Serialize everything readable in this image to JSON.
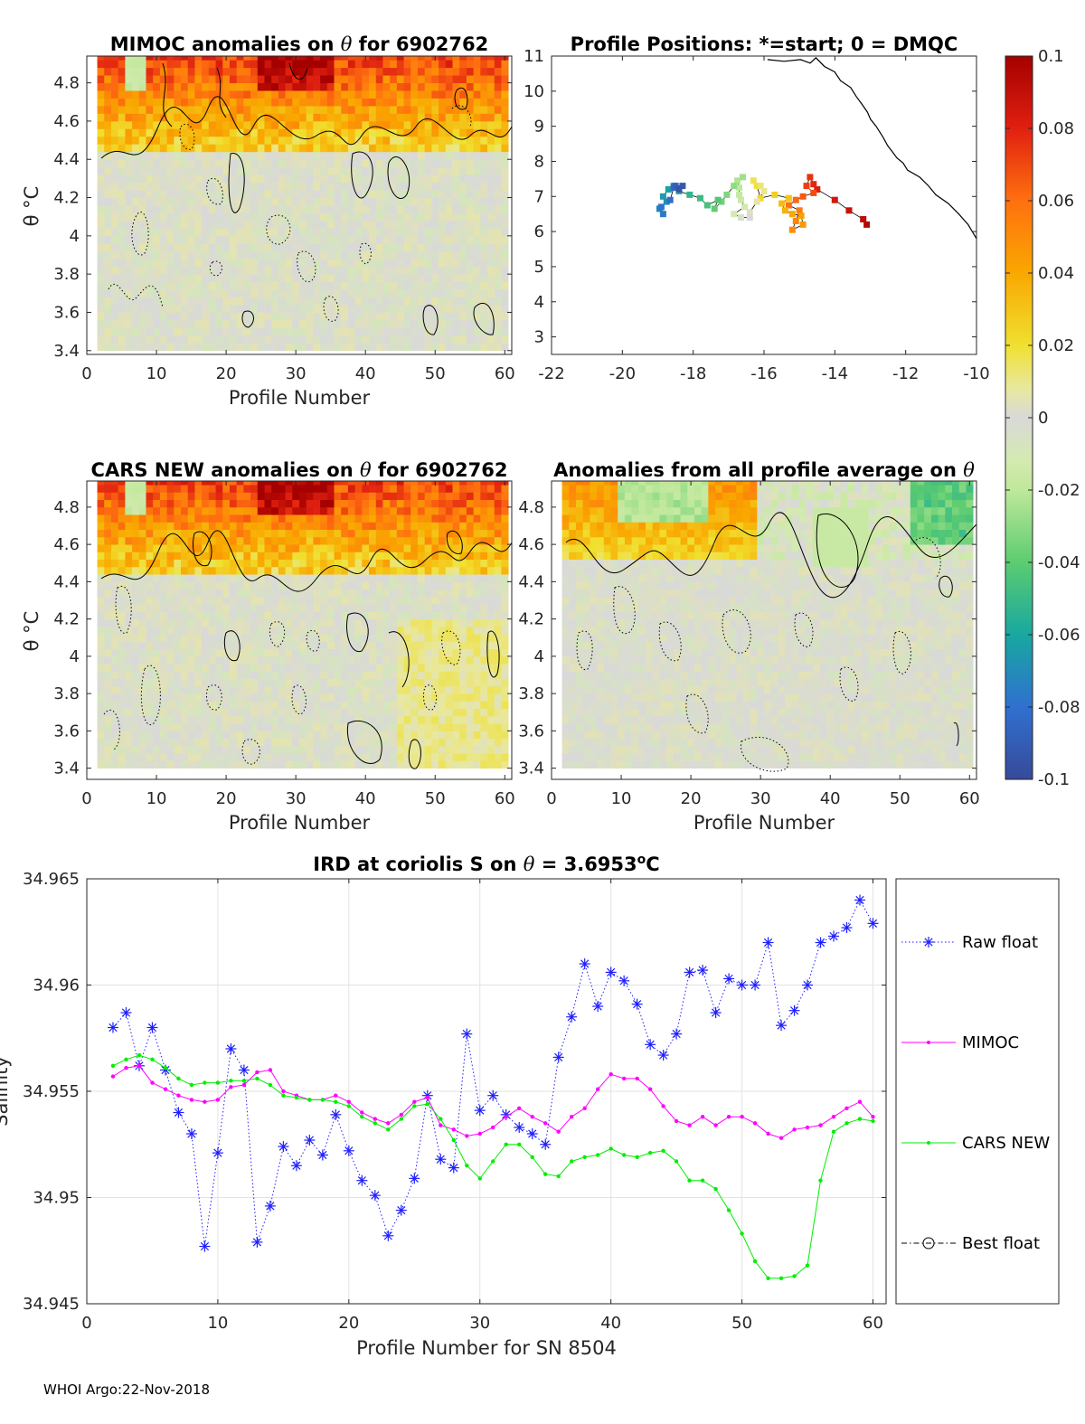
{
  "footer": "WHOI Argo:22-Nov-2018",
  "colors": {
    "raw": "#1f1fff",
    "mimoc": "#ff00ff",
    "cars": "#00ee00",
    "best": "#000000",
    "coast": "#000000",
    "field": "#d9d9d9"
  },
  "colorbar": {
    "ticks": [
      "0.1",
      "0.08",
      "0.06",
      "0.04",
      "0.02",
      "0",
      "-0.02",
      "-0.04",
      "-0.06",
      "-0.08",
      "-0.1"
    ],
    "range": [
      -0.1,
      0.1
    ]
  },
  "chart_data": [
    {
      "id": "mimoc",
      "type": "heatmap",
      "title_parts": [
        "MIMOC anomalies on",
        "θ",
        " for 6902762"
      ],
      "xlabel": "Profile Number",
      "ylabel": "θ °C",
      "xlim": [
        0,
        61
      ],
      "ylim": [
        3.38,
        4.94
      ],
      "xticks": [
        "0",
        "10",
        "20",
        "30",
        "40",
        "50",
        "60"
      ],
      "yticks": [
        "3.4",
        "3.6",
        "3.8",
        "4",
        "4.2",
        "4.4",
        "4.6",
        "4.8"
      ],
      "profiles": [
        2,
        60
      ]
    },
    {
      "id": "positions",
      "type": "scatter",
      "title": "Profile Positions: *=start; 0 = DMQC",
      "xlim": [
        -22,
        -10
      ],
      "ylim": [
        2.5,
        11
      ],
      "xticks": [
        "-22",
        "-20",
        "-18",
        "-16",
        "-14",
        "-12",
        "-10"
      ],
      "yticks": [
        "3",
        "4",
        "5",
        "6",
        "7",
        "8",
        "9",
        "10",
        "11"
      ],
      "track": [
        [
          -13.1,
          6.2
        ],
        [
          -13.2,
          6.35
        ],
        [
          -13.6,
          6.6
        ],
        [
          -14.0,
          6.9
        ],
        [
          -14.5,
          7.2
        ],
        [
          -14.6,
          7.35
        ],
        [
          -14.7,
          7.55
        ],
        [
          -14.8,
          7.3
        ],
        [
          -14.6,
          7.1
        ],
        [
          -14.9,
          7.0
        ],
        [
          -15.1,
          6.9
        ],
        [
          -15.3,
          6.75
        ],
        [
          -15.0,
          6.6
        ],
        [
          -15.1,
          6.3
        ],
        [
          -15.2,
          6.05
        ],
        [
          -14.9,
          6.2
        ],
        [
          -14.95,
          6.45
        ],
        [
          -15.2,
          6.5
        ],
        [
          -15.4,
          6.6
        ],
        [
          -15.5,
          6.8
        ],
        [
          -15.3,
          6.95
        ],
        [
          -15.7,
          7.05
        ],
        [
          -16.1,
          6.95
        ],
        [
          -16.2,
          7.3
        ],
        [
          -16.3,
          7.45
        ],
        [
          -16.1,
          7.3
        ],
        [
          -16.0,
          7.15
        ],
        [
          -16.2,
          6.85
        ],
        [
          -16.4,
          6.55
        ],
        [
          -16.4,
          6.4
        ],
        [
          -16.65,
          6.4
        ],
        [
          -16.85,
          6.5
        ],
        [
          -16.55,
          6.7
        ],
        [
          -16.65,
          6.9
        ],
        [
          -16.7,
          7.05
        ],
        [
          -16.7,
          7.25
        ],
        [
          -16.75,
          7.45
        ],
        [
          -16.6,
          7.55
        ],
        [
          -16.85,
          7.3
        ],
        [
          -17.05,
          7.05
        ],
        [
          -17.2,
          6.85
        ],
        [
          -17.4,
          6.65
        ],
        [
          -17.3,
          6.9
        ],
        [
          -17.6,
          6.75
        ],
        [
          -17.8,
          6.95
        ],
        [
          -18.1,
          7.05
        ],
        [
          -18.4,
          7.15
        ],
        [
          -18.55,
          7.3
        ],
        [
          -18.7,
          7.2
        ],
        [
          -18.85,
          7.0
        ],
        [
          -18.75,
          6.85
        ],
        [
          -18.95,
          6.65
        ],
        [
          -18.85,
          6.5
        ],
        [
          -18.9,
          6.7
        ],
        [
          -18.65,
          6.9
        ],
        [
          -18.55,
          7.25
        ],
        [
          -18.5,
          7.3
        ],
        [
          -18.3,
          7.3
        ],
        [
          -18.4,
          7.2
        ]
      ],
      "coastline": [
        [
          -15.9,
          10.9
        ],
        [
          -15.4,
          10.85
        ],
        [
          -15.0,
          10.9
        ],
        [
          -14.7,
          10.8
        ],
        [
          -14.5,
          10.95
        ],
        [
          -14.3,
          10.7
        ],
        [
          -14.0,
          10.55
        ],
        [
          -13.8,
          10.3
        ],
        [
          -13.55,
          10.1
        ],
        [
          -13.35,
          9.85
        ],
        [
          -13.2,
          9.6
        ],
        [
          -13.1,
          9.4
        ],
        [
          -12.95,
          9.2
        ],
        [
          -12.8,
          9.0
        ],
        [
          -12.6,
          8.7
        ],
        [
          -12.55,
          8.45
        ],
        [
          -12.35,
          8.3
        ],
        [
          -12.3,
          8.1
        ],
        [
          -12.05,
          7.95
        ],
        [
          -11.9,
          7.75
        ],
        [
          -11.6,
          7.55
        ],
        [
          -11.4,
          7.3
        ],
        [
          -11.15,
          7.05
        ],
        [
          -10.8,
          6.8
        ],
        [
          -10.5,
          6.5
        ],
        [
          -10.25,
          6.2
        ],
        [
          -10.0,
          5.8
        ]
      ]
    },
    {
      "id": "cars",
      "type": "heatmap",
      "title_parts": [
        "CARS NEW anomalies on ",
        "θ",
        " for 6902762"
      ],
      "xlabel": "Profile Number",
      "ylabel": "θ °C",
      "xlim": [
        0,
        61
      ],
      "ylim": [
        3.34,
        4.94
      ],
      "xticks": [
        "0",
        "10",
        "20",
        "30",
        "40",
        "50",
        "60"
      ],
      "yticks": [
        "3.4",
        "3.6",
        "3.8",
        "4",
        "4.2",
        "4.4",
        "4.6",
        "4.8"
      ],
      "profiles": [
        2,
        60
      ]
    },
    {
      "id": "allavg",
      "type": "heatmap",
      "title_parts": [
        "Anomalies from all profile average on ",
        "θ"
      ],
      "xlabel": "Profile Number",
      "xlim": [
        0,
        61
      ],
      "ylim": [
        3.34,
        4.94
      ],
      "xticks": [
        "0",
        "10",
        "20",
        "30",
        "40",
        "50",
        "60"
      ],
      "yticks": [
        "3.4",
        "3.6",
        "3.8",
        "4",
        "4.2",
        "4.4",
        "4.6",
        "4.8"
      ],
      "profiles": [
        2,
        60
      ]
    },
    {
      "id": "ird",
      "type": "line",
      "title": "IRD at coriolis S on θ = 3.6953°C",
      "title_parts": [
        "IRD at coriolis S on ",
        "θ",
        " = 3.6953",
        "o",
        "C"
      ],
      "xlabel": "Profile Number for SN 8504",
      "ylabel": "Salinity",
      "xlim": [
        0,
        61
      ],
      "ylim": [
        34.945,
        34.965
      ],
      "xticks": [
        "0",
        "10",
        "20",
        "30",
        "40",
        "50",
        "60"
      ],
      "yticks": [
        "34.945",
        "34.95",
        "34.955",
        "34.96",
        "34.965"
      ],
      "x": [
        2,
        3,
        4,
        5,
        6,
        7,
        8,
        9,
        10,
        11,
        12,
        13,
        14,
        15,
        16,
        17,
        18,
        19,
        20,
        21,
        22,
        23,
        24,
        25,
        26,
        27,
        28,
        29,
        30,
        31,
        32,
        33,
        34,
        35,
        36,
        37,
        38,
        39,
        40,
        41,
        42,
        43,
        44,
        45,
        46,
        47,
        48,
        49,
        50,
        51,
        52,
        53,
        54,
        55,
        56,
        57,
        58,
        59,
        60
      ],
      "series": [
        {
          "name": "Raw float",
          "marker": "star",
          "values": [
            34.958,
            34.9587,
            34.9562,
            34.958,
            34.956,
            34.954,
            34.953,
            34.9477,
            34.9521,
            34.957,
            34.956,
            34.9479,
            34.9496,
            34.9524,
            34.9515,
            34.9527,
            34.952,
            34.9539,
            34.9522,
            34.9508,
            34.9501,
            34.9482,
            34.9494,
            34.9509,
            34.9548,
            34.9518,
            34.9514,
            34.9577,
            34.9541,
            34.9548,
            34.9539,
            34.9533,
            34.953,
            34.9525,
            34.9566,
            34.9585,
            34.961,
            34.959,
            34.9606,
            34.9602,
            34.9591,
            34.9572,
            34.9567,
            34.9577,
            34.9606,
            34.9607,
            34.9587,
            34.9603,
            34.96,
            34.96,
            34.962,
            34.9581,
            34.9588,
            34.96,
            34.962,
            34.9623,
            34.9627,
            34.964,
            34.9629
          ]
        },
        {
          "name": "MIMOC",
          "marker": "dot",
          "values": [
            34.9557,
            34.9561,
            34.9562,
            34.9554,
            34.9551,
            34.9548,
            34.9546,
            34.9545,
            34.9546,
            34.9552,
            34.9553,
            34.9559,
            34.956,
            34.955,
            34.9548,
            34.9546,
            34.9546,
            34.9548,
            34.9545,
            34.954,
            34.9537,
            34.9535,
            34.9539,
            34.9545,
            34.9547,
            34.9534,
            34.9532,
            34.9529,
            34.953,
            34.9533,
            34.9538,
            34.9542,
            34.9538,
            34.9535,
            34.9531,
            34.9538,
            34.9542,
            34.9551,
            34.9558,
            34.9556,
            34.9556,
            34.9551,
            34.9543,
            34.9536,
            34.9534,
            34.9538,
            34.9534,
            34.9538,
            34.9538,
            34.9535,
            34.953,
            34.9528,
            34.9532,
            34.9533,
            34.9534,
            34.9538,
            34.9542,
            34.9545,
            34.9538
          ]
        },
        {
          "name": "CARS NEW",
          "marker": "dot",
          "values": [
            34.9562,
            34.9565,
            34.9567,
            34.9565,
            34.9561,
            34.9556,
            34.9553,
            34.9554,
            34.9554,
            34.9555,
            34.9555,
            34.9556,
            34.9553,
            34.9548,
            34.9547,
            34.9546,
            34.9546,
            34.9545,
            34.9543,
            34.9538,
            34.9535,
            34.9532,
            34.9537,
            34.9543,
            34.9544,
            34.9537,
            34.9527,
            34.9515,
            34.9509,
            34.9517,
            34.9525,
            34.9525,
            34.9519,
            34.9511,
            34.951,
            34.9517,
            34.9519,
            34.952,
            34.9523,
            34.952,
            34.9519,
            34.9521,
            34.9522,
            34.9517,
            34.9508,
            34.9508,
            34.9504,
            34.9494,
            34.9483,
            34.947,
            34.9462,
            34.9462,
            34.9463,
            34.9468,
            34.9508,
            34.9531,
            34.9535,
            34.9537,
            34.9536
          ]
        }
      ],
      "legend": [
        "Raw float",
        "MIMOC",
        "CARS NEW",
        "Best float"
      ],
      "legend_position": "right"
    }
  ]
}
